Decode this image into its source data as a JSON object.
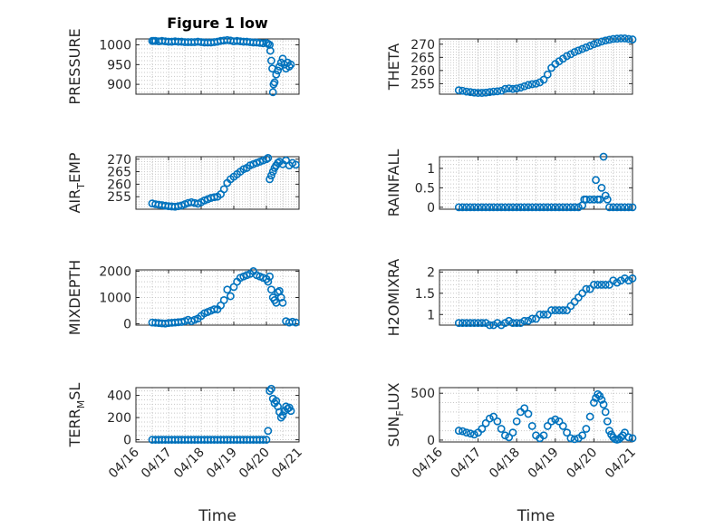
{
  "colors": {
    "series": "#0072bd"
  },
  "chart_data": [
    {
      "type": "scatter",
      "title": "Figure 1 low",
      "ylabel": {
        "main": "PRESSURE",
        "sub": "",
        "rest": ""
      },
      "xlabel": "",
      "ylim": [
        875,
        1015
      ],
      "yticks": [
        900,
        950,
        1000
      ],
      "xlim": [
        0,
        5
      ],
      "xticks": [],
      "grid": true,
      "series": [
        {
          "x": [
            0.5,
            0.55,
            0.6,
            0.7,
            0.8,
            0.9,
            1.0,
            1.1,
            1.2,
            1.3,
            1.4,
            1.5,
            1.6,
            1.7,
            1.8,
            1.9,
            2.0,
            2.1,
            2.2,
            2.3,
            2.4,
            2.5,
            2.6,
            2.7,
            2.8,
            2.9,
            3.0,
            3.1,
            3.2,
            3.3,
            3.4,
            3.5,
            3.6,
            3.7,
            3.8,
            3.9,
            4.0,
            4.05,
            4.1,
            4.12,
            4.15,
            4.18,
            4.2,
            4.22,
            4.25,
            4.3,
            4.35,
            4.4,
            4.45,
            4.5,
            4.55,
            4.6,
            4.65,
            4.7,
            4.75
          ],
          "y": [
            1010,
            1010,
            1010,
            1009,
            1010,
            1009,
            1008,
            1008,
            1009,
            1008,
            1008,
            1007,
            1007,
            1007,
            1007,
            1008,
            1007,
            1006,
            1006,
            1006,
            1007,
            1008,
            1010,
            1011,
            1012,
            1011,
            1009,
            1010,
            1009,
            1008,
            1008,
            1007,
            1006,
            1006,
            1005,
            1004,
            1005,
            1003,
            1000,
            985,
            960,
            940,
            880,
            900,
            905,
            925,
            935,
            945,
            955,
            965,
            950,
            940,
            955,
            945,
            950
          ]
        }
      ]
    },
    {
      "type": "scatter",
      "title": "",
      "ylabel": {
        "main": "THETA",
        "sub": "",
        "rest": ""
      },
      "xlabel": "",
      "ylim": [
        251,
        272
      ],
      "yticks": [
        255,
        260,
        265,
        270
      ],
      "xlim": [
        0,
        5
      ],
      "xticks": [],
      "grid": true,
      "series": [
        {
          "x": [
            0.5,
            0.6,
            0.7,
            0.8,
            0.9,
            1.0,
            1.1,
            1.2,
            1.3,
            1.4,
            1.5,
            1.6,
            1.7,
            1.8,
            1.9,
            2.0,
            2.1,
            2.2,
            2.3,
            2.4,
            2.5,
            2.6,
            2.7,
            2.8,
            2.9,
            3.0,
            3.1,
            3.2,
            3.3,
            3.4,
            3.5,
            3.6,
            3.7,
            3.8,
            3.9,
            4.0,
            4.1,
            4.2,
            4.3,
            4.4,
            4.5,
            4.6,
            4.7,
            4.8,
            4.9,
            5.0
          ],
          "y": [
            252.5,
            252.3,
            252.0,
            251.8,
            251.6,
            251.5,
            251.5,
            251.6,
            251.8,
            252.0,
            252.1,
            252.3,
            253.0,
            253.2,
            253.0,
            253.2,
            253.5,
            254.0,
            254.5,
            254.8,
            255.0,
            255.5,
            256.5,
            258.5,
            261.0,
            262.5,
            263.5,
            264.5,
            265.5,
            266.2,
            267.0,
            267.6,
            268.2,
            268.8,
            269.4,
            270.0,
            270.5,
            271.0,
            271.4,
            271.7,
            272.0,
            272.1,
            272.2,
            272.2,
            272.0,
            271.8
          ]
        }
      ]
    },
    {
      "type": "scatter",
      "title": "",
      "ylabel": {
        "main": "AIR",
        "sub": "T",
        "rest": "EMP"
      },
      "xlabel": "",
      "ylim": [
        250,
        271
      ],
      "yticks": [
        255,
        260,
        265,
        270
      ],
      "xlim": [
        0,
        5
      ],
      "xticks": [],
      "grid": true,
      "series": [
        {
          "x": [
            0.5,
            0.6,
            0.7,
            0.8,
            0.9,
            1.0,
            1.1,
            1.2,
            1.3,
            1.4,
            1.5,
            1.6,
            1.7,
            1.8,
            1.9,
            2.0,
            2.1,
            2.2,
            2.3,
            2.4,
            2.5,
            2.6,
            2.7,
            2.8,
            2.9,
            3.0,
            3.1,
            3.2,
            3.3,
            3.4,
            3.5,
            3.6,
            3.7,
            3.8,
            3.9,
            4.0,
            4.05,
            4.1,
            4.15,
            4.2,
            4.25,
            4.3,
            4.35,
            4.4,
            4.5,
            4.6,
            4.7,
            4.8,
            4.9
          ],
          "y": [
            252.3,
            252.0,
            251.8,
            251.6,
            251.4,
            251.2,
            251.1,
            251.0,
            251.2,
            251.5,
            252.0,
            252.5,
            252.8,
            252.5,
            252.2,
            252.8,
            253.5,
            254.0,
            254.5,
            254.8,
            255.0,
            256.0,
            258.0,
            260.5,
            262.0,
            263.0,
            264.0,
            265.0,
            266.0,
            266.5,
            267.5,
            268.0,
            268.5,
            269.0,
            269.5,
            270.0,
            270.5,
            262.0,
            263.5,
            265.0,
            266.5,
            267.5,
            268.5,
            269.0,
            268.0,
            269.5,
            267.5,
            268.5,
            267.8
          ]
        }
      ]
    },
    {
      "type": "scatter",
      "title": "",
      "ylabel": {
        "main": "RAINFALL",
        "sub": "",
        "rest": ""
      },
      "xlabel": "",
      "ylim": [
        -0.05,
        1.3
      ],
      "yticks": [
        0,
        0.5,
        1
      ],
      "xlim": [
        0,
        5
      ],
      "xticks": [],
      "grid": true,
      "series": [
        {
          "x": [
            0.5,
            0.6,
            0.7,
            0.8,
            0.9,
            1.0,
            1.1,
            1.2,
            1.3,
            1.4,
            1.5,
            1.6,
            1.7,
            1.8,
            1.9,
            2.0,
            2.1,
            2.2,
            2.3,
            2.4,
            2.5,
            2.6,
            2.7,
            2.8,
            2.9,
            3.0,
            3.1,
            3.2,
            3.3,
            3.4,
            3.5,
            3.6,
            3.7,
            3.75,
            3.8,
            3.9,
            4.0,
            4.05,
            4.1,
            4.15,
            4.2,
            4.25,
            4.3,
            4.35,
            4.4,
            4.5,
            4.6,
            4.7,
            4.8,
            4.9,
            5.0
          ],
          "y": [
            0,
            0,
            0,
            0,
            0,
            0,
            0,
            0,
            0,
            0,
            0,
            0,
            0,
            0,
            0,
            0,
            0,
            0,
            0,
            0,
            0,
            0,
            0,
            0,
            0,
            0,
            0,
            0,
            0,
            0,
            0,
            0,
            0.05,
            0.2,
            0.2,
            0.2,
            0.2,
            0.7,
            0.2,
            0.2,
            0.5,
            1.3,
            0.3,
            0.2,
            0,
            0,
            0,
            0,
            0,
            0,
            0
          ]
        }
      ]
    },
    {
      "type": "scatter",
      "title": "",
      "ylabel": {
        "main": "MIXDEPTH",
        "sub": "",
        "rest": ""
      },
      "xlabel": "",
      "ylim": [
        -50,
        2050
      ],
      "yticks": [
        0,
        1000,
        2000
      ],
      "xlim": [
        0,
        5
      ],
      "xticks": [],
      "grid": true,
      "series": [
        {
          "x": [
            0.5,
            0.6,
            0.7,
            0.8,
            0.9,
            1.0,
            1.1,
            1.2,
            1.3,
            1.4,
            1.5,
            1.6,
            1.7,
            1.8,
            1.9,
            2.0,
            2.1,
            2.2,
            2.3,
            2.4,
            2.5,
            2.6,
            2.7,
            2.8,
            2.9,
            3.0,
            3.1,
            3.2,
            3.3,
            3.4,
            3.5,
            3.6,
            3.7,
            3.8,
            3.9,
            4.0,
            4.05,
            4.1,
            4.15,
            4.2,
            4.25,
            4.3,
            4.35,
            4.4,
            4.45,
            4.5,
            4.6,
            4.7,
            4.8,
            4.9
          ],
          "y": [
            50,
            40,
            30,
            20,
            10,
            30,
            40,
            50,
            60,
            70,
            100,
            150,
            100,
            150,
            200,
            300,
            400,
            450,
            500,
            550,
            550,
            700,
            900,
            1300,
            1050,
            1400,
            1600,
            1750,
            1800,
            1850,
            1900,
            2000,
            1850,
            1800,
            1750,
            1700,
            1600,
            1800,
            1300,
            1000,
            900,
            800,
            1200,
            1250,
            1000,
            800,
            100,
            50,
            80,
            50
          ]
        }
      ]
    },
    {
      "type": "scatter",
      "title": "",
      "ylabel": {
        "main": "H2OMIXRA",
        "sub": "",
        "rest": ""
      },
      "xlabel": "",
      "ylim": [
        0.75,
        2.05
      ],
      "yticks": [
        1,
        1.5,
        2
      ],
      "xlim": [
        0,
        5
      ],
      "xticks": [],
      "grid": true,
      "series": [
        {
          "x": [
            0.5,
            0.6,
            0.7,
            0.8,
            0.9,
            1.0,
            1.1,
            1.2,
            1.3,
            1.4,
            1.5,
            1.6,
            1.7,
            1.8,
            1.9,
            2.0,
            2.1,
            2.2,
            2.3,
            2.4,
            2.5,
            2.6,
            2.7,
            2.8,
            2.9,
            3.0,
            3.1,
            3.2,
            3.3,
            3.4,
            3.5,
            3.6,
            3.7,
            3.8,
            3.9,
            4.0,
            4.1,
            4.2,
            4.3,
            4.4,
            4.5,
            4.6,
            4.7,
            4.8,
            4.9,
            5.0
          ],
          "y": [
            0.8,
            0.8,
            0.8,
            0.8,
            0.8,
            0.8,
            0.8,
            0.8,
            0.75,
            0.75,
            0.8,
            0.75,
            0.8,
            0.85,
            0.8,
            0.8,
            0.8,
            0.85,
            0.85,
            0.9,
            0.9,
            1.0,
            1.0,
            1.0,
            1.1,
            1.1,
            1.1,
            1.1,
            1.1,
            1.2,
            1.3,
            1.4,
            1.5,
            1.6,
            1.6,
            1.7,
            1.7,
            1.7,
            1.7,
            1.7,
            1.8,
            1.75,
            1.8,
            1.85,
            1.8,
            1.85
          ]
        }
      ]
    },
    {
      "type": "scatter",
      "title": "",
      "ylabel": {
        "main": "TERR",
        "sub": "M",
        "rest": "SL"
      },
      "xlabel": "Time",
      "ylim": [
        -20,
        470
      ],
      "yticks": [
        0,
        200,
        400
      ],
      "xlim": [
        0,
        5
      ],
      "xticks": [
        "04/16",
        "04/17",
        "04/18",
        "04/19",
        "04/20",
        "04/21"
      ],
      "grid": true,
      "series": [
        {
          "x": [
            0.5,
            0.6,
            0.7,
            0.8,
            0.9,
            1.0,
            1.1,
            1.2,
            1.3,
            1.4,
            1.5,
            1.6,
            1.7,
            1.8,
            1.9,
            2.0,
            2.1,
            2.2,
            2.3,
            2.4,
            2.5,
            2.6,
            2.7,
            2.8,
            2.9,
            3.0,
            3.1,
            3.2,
            3.3,
            3.4,
            3.5,
            3.6,
            3.7,
            3.8,
            3.9,
            4.0,
            4.05,
            4.1,
            4.15,
            4.2,
            4.25,
            4.3,
            4.35,
            4.4,
            4.45,
            4.5,
            4.55,
            4.6,
            4.65,
            4.7,
            4.75
          ],
          "y": [
            0,
            0,
            0,
            0,
            0,
            0,
            0,
            0,
            0,
            0,
            0,
            0,
            0,
            0,
            0,
            0,
            0,
            0,
            0,
            0,
            0,
            0,
            0,
            0,
            0,
            0,
            0,
            0,
            0,
            0,
            0,
            0,
            0,
            0,
            0,
            0,
            80,
            440,
            460,
            370,
            330,
            350,
            300,
            250,
            200,
            220,
            260,
            300,
            280,
            290,
            260
          ]
        }
      ]
    },
    {
      "type": "scatter",
      "title": "",
      "ylabel": {
        "main": "SUN",
        "sub": "F",
        "rest": "LUX"
      },
      "xlabel": "Time",
      "ylim": [
        -20,
        560
      ],
      "yticks": [
        0,
        500
      ],
      "xlim": [
        0,
        5
      ],
      "xticks": [
        "04/16",
        "04/17",
        "04/18",
        "04/19",
        "04/20",
        "04/21"
      ],
      "grid": true,
      "series": [
        {
          "x": [
            0.5,
            0.6,
            0.7,
            0.8,
            0.9,
            1.0,
            1.1,
            1.2,
            1.3,
            1.4,
            1.5,
            1.6,
            1.7,
            1.8,
            1.9,
            2.0,
            2.1,
            2.2,
            2.3,
            2.4,
            2.5,
            2.6,
            2.7,
            2.8,
            2.9,
            3.0,
            3.1,
            3.2,
            3.3,
            3.4,
            3.5,
            3.6,
            3.7,
            3.8,
            3.9,
            4.0,
            4.05,
            4.1,
            4.15,
            4.2,
            4.25,
            4.3,
            4.35,
            4.4,
            4.45,
            4.5,
            4.55,
            4.6,
            4.65,
            4.7,
            4.75,
            4.8,
            4.9,
            5.0
          ],
          "y": [
            100,
            95,
            80,
            70,
            60,
            80,
            120,
            180,
            230,
            250,
            200,
            120,
            50,
            30,
            80,
            200,
            300,
            340,
            280,
            150,
            50,
            20,
            50,
            150,
            200,
            220,
            200,
            150,
            80,
            20,
            10,
            20,
            50,
            120,
            250,
            400,
            450,
            490,
            470,
            430,
            380,
            300,
            200,
            100,
            60,
            30,
            10,
            5,
            10,
            30,
            50,
            80,
            30,
            20
          ]
        }
      ]
    }
  ]
}
